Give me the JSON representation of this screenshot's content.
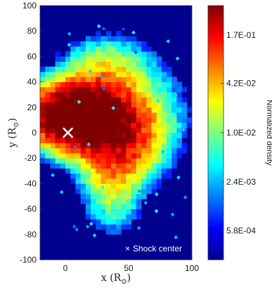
{
  "chart_data": {
    "type": "heatmap",
    "title": "",
    "xlabel": "x (R",
    "ylabel": "y (R",
    "axis_sub": "⊙",
    "xlim": [
      -20,
      100
    ],
    "ylim": [
      -100,
      100
    ],
    "x_ticks": [
      "0",
      "50",
      "100"
    ],
    "x_tick_values": [
      0,
      50,
      100
    ],
    "y_ticks": [
      "100",
      "80",
      "60",
      "40",
      "20",
      "0",
      "-20",
      "-40",
      "-60",
      "-80",
      "-100"
    ],
    "y_tick_values": [
      100,
      80,
      60,
      40,
      20,
      0,
      -20,
      -40,
      -60,
      -80,
      -100
    ],
    "colormap": "jet",
    "colorbar": {
      "label": "Normalized density",
      "scale": "log",
      "ticks": [
        "1.7E-01",
        "4.2E-02",
        "1.0E-02",
        "2.4E-03",
        "5.8E-04"
      ],
      "tick_values": [
        0.17,
        0.042,
        0.01,
        0.0024,
        0.00058
      ]
    },
    "density_blobs": [
      {
        "x": 0,
        "y": 12,
        "sx": 20,
        "sy": 14,
        "amp": 1.0
      },
      {
        "x": 15,
        "y": 10,
        "sx": 18,
        "sy": 16,
        "amp": 0.7
      },
      {
        "x": 35,
        "y": 5,
        "sx": 18,
        "sy": 22,
        "amp": 0.45
      },
      {
        "x": 50,
        "y": -5,
        "sx": 16,
        "sy": 20,
        "amp": 0.2
      },
      {
        "x": 35,
        "y": -35,
        "sx": 14,
        "sy": 25,
        "amp": 0.18
      },
      {
        "x": 30,
        "y": 50,
        "sx": 20,
        "sy": 14,
        "amp": 0.15
      },
      {
        "x": 70,
        "y": 10,
        "sx": 18,
        "sy": 25,
        "amp": 0.08
      }
    ],
    "marker": {
      "label": "Shock center",
      "x": 2,
      "y": 0,
      "symbol": "×"
    },
    "legend_position": "bottom-right",
    "colors": {
      "background": "#00008f",
      "marker": "#ffffff"
    }
  }
}
